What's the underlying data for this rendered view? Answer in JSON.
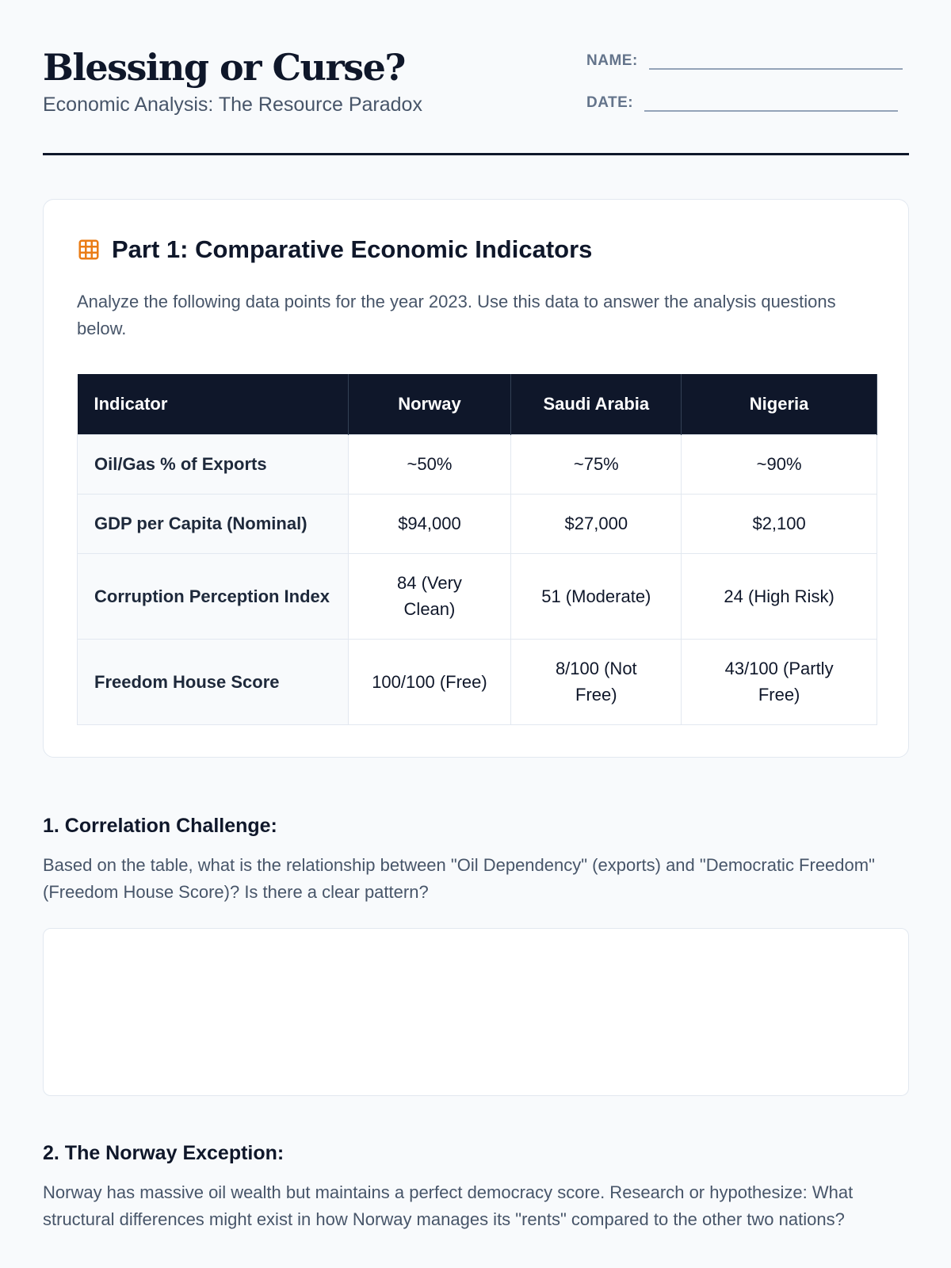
{
  "header": {
    "title": "Blessing or Curse?",
    "subtitle": "Economic Analysis: The Resource Paradox",
    "name_label": "NAME:",
    "date_label": "DATE:"
  },
  "part1": {
    "icon": "table-icon",
    "title": "Part 1: Comparative Economic Indicators",
    "description": "Analyze the following data points for the year 2023. Use this data to answer the analysis questions below.",
    "table": {
      "headers": [
        "Indicator",
        "Norway",
        "Saudi Arabia",
        "Nigeria"
      ],
      "rows": [
        [
          "Oil/Gas % of Exports",
          "~50%",
          "~75%",
          "~90%"
        ],
        [
          "GDP per Capita (Nominal)",
          "$94,000",
          "$27,000",
          "$2,100"
        ],
        [
          "Corruption Perception Index",
          "84 (Very Clean)",
          "51 (Moderate)",
          "24 (High Risk)"
        ],
        [
          "Freedom House Score",
          "100/100 (Free)",
          "8/100 (Not Free)",
          "43/100 (Partly Free)"
        ]
      ]
    }
  },
  "questions": [
    {
      "heading": "1. Correlation Challenge:",
      "text": "Based on the table, what is the relationship between \"Oil Dependency\" (exports) and \"Democratic Freedom\" (Freedom House Score)? Is there a clear pattern?"
    },
    {
      "heading": "2. The Norway Exception:",
      "text": "Norway has massive oil wealth but maintains a perfect democracy score. Research or hypothesize: What structural differences might exist in how Norway manages its \"rents\" compared to the other two nations?"
    }
  ],
  "colors": {
    "accent": "#ea7c16",
    "dark": "#0f172a"
  }
}
